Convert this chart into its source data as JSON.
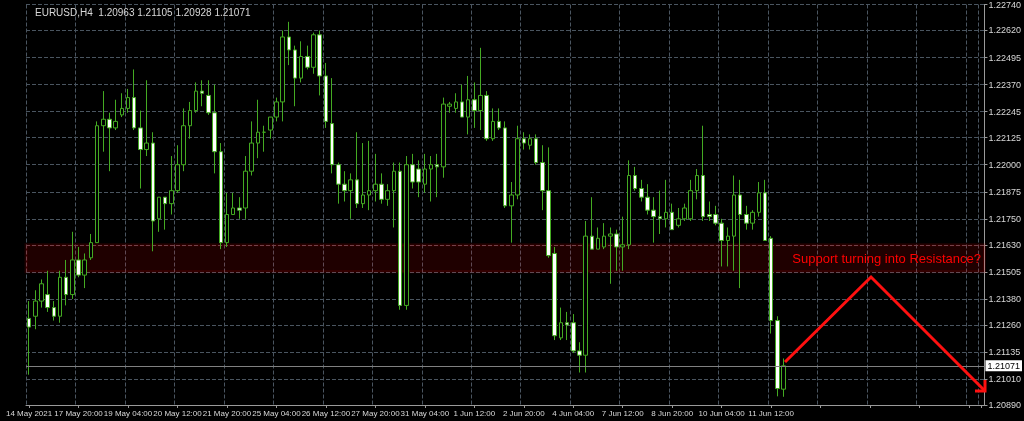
{
  "chart_data": {
    "type": "candlestick",
    "title": "EURUSD,H4  1.20963 1.21105 1.20928 1.21071",
    "categories": [
      "14 May 2021",
      null,
      null,
      null,
      null,
      null,
      null,
      null,
      "17 May 20:00",
      null,
      null,
      null,
      null,
      null,
      null,
      null,
      "19 May 04:00",
      null,
      null,
      null,
      null,
      null,
      null,
      null,
      "20 May 12:00",
      null,
      null,
      null,
      null,
      null,
      null,
      null,
      "21 May 20:00",
      null,
      null,
      null,
      null,
      null,
      null,
      null,
      "25 May 04:00",
      null,
      null,
      null,
      null,
      null,
      null,
      null,
      "26 May 12:00",
      null,
      null,
      null,
      null,
      null,
      null,
      null,
      "27 May 20:00",
      null,
      null,
      null,
      null,
      null,
      null,
      null,
      "31 May 04:00",
      null,
      null,
      null,
      null,
      null,
      null,
      null,
      "1 Jun 12:00",
      null,
      null,
      null,
      null,
      null,
      null,
      null,
      "2 Jun 20:00",
      null,
      null,
      null,
      null,
      null,
      null,
      null,
      "4 Jun 04:00",
      null,
      null,
      null,
      null,
      null,
      null,
      null,
      "7 Jun 12:00",
      null,
      null,
      null,
      null,
      null,
      null,
      null,
      "8 Jun 20:00",
      null,
      null,
      null,
      null,
      null,
      null,
      null,
      "10 Jun 04:00",
      null,
      null,
      null,
      null,
      null,
      null,
      null,
      "11 Jun 12:00",
      null,
      null,
      null,
      null,
      null,
      null,
      null,
      null,
      null,
      null,
      null,
      null,
      null,
      null,
      null,
      null,
      null,
      null,
      null,
      null,
      null,
      null,
      null,
      null,
      null,
      null,
      null,
      null,
      null,
      null,
      null,
      null,
      null,
      null
    ],
    "series": [
      {
        "color": "#44aa22",
        "ohlc": [
          [
            1.2129,
            1.2137,
            1.2103,
            1.2125
          ],
          [
            1.213,
            1.2142,
            1.2124,
            1.2137
          ],
          [
            1.2137,
            1.2147,
            1.2134,
            1.2145
          ],
          [
            1.214,
            1.2151,
            1.2132,
            1.2134
          ],
          [
            1.2134,
            1.2137,
            1.2128,
            1.213
          ],
          [
            1.213,
            1.2151,
            1.2127,
            1.2148
          ],
          [
            1.2148,
            1.2156,
            1.2135,
            1.214
          ],
          [
            1.214,
            1.2169,
            1.2138,
            1.2156
          ],
          [
            1.2156,
            1.2162,
            1.2148,
            1.2149
          ],
          [
            1.2149,
            1.2159,
            1.2143,
            1.2156
          ],
          [
            1.2157,
            1.2168,
            1.2156,
            1.2164
          ],
          [
            1.2164,
            1.222,
            1.2164,
            1.2218
          ],
          [
            1.2218,
            1.2234,
            1.2206,
            1.2221
          ],
          [
            1.2221,
            1.2224,
            1.2197,
            1.2217
          ],
          [
            1.2217,
            1.223,
            1.2216,
            1.222
          ],
          [
            1.2223,
            1.2233,
            1.2222,
            1.2226
          ],
          [
            1.2226,
            1.2235,
            1.2224,
            1.2231
          ],
          [
            1.2231,
            1.2244,
            1.2216,
            1.2217
          ],
          [
            1.2217,
            1.2225,
            1.2189,
            1.2207
          ],
          [
            1.2207,
            1.2239,
            1.2204,
            1.221
          ],
          [
            1.221,
            1.2215,
            1.216,
            1.2174
          ],
          [
            1.2175,
            1.2185,
            1.2169,
            1.2185
          ],
          [
            1.2185,
            1.2185,
            1.217,
            1.2182
          ],
          [
            1.2182,
            1.2204,
            1.2177,
            1.2188
          ],
          [
            1.2188,
            1.2209,
            1.2187,
            1.22
          ],
          [
            1.22,
            1.2226,
            1.2197,
            1.2218
          ],
          [
            1.2218,
            1.2229,
            1.2212,
            1.2225
          ],
          [
            1.2225,
            1.2238,
            1.2224,
            1.2234
          ],
          [
            1.2234,
            1.2239,
            1.2227,
            1.2233
          ],
          [
            1.2232,
            1.2239,
            1.2223,
            1.2224
          ],
          [
            1.2224,
            1.2237,
            1.2196,
            1.2206
          ],
          [
            1.2206,
            1.221,
            1.2161,
            1.2164
          ],
          [
            1.2164,
            1.2187,
            1.2162,
            1.2177
          ],
          [
            1.2177,
            1.2187,
            1.2177,
            1.218
          ],
          [
            1.218,
            1.2185,
            1.2175,
            1.2179
          ],
          [
            1.218,
            1.2204,
            1.2175,
            1.2197
          ],
          [
            1.2197,
            1.222,
            1.2195,
            1.221
          ],
          [
            1.221,
            1.223,
            1.2203,
            1.2215
          ],
          [
            1.2215,
            1.2218,
            1.2206,
            1.2215
          ],
          [
            1.2216,
            1.2222,
            1.2212,
            1.2222
          ],
          [
            1.2222,
            1.2231,
            1.222,
            1.2229
          ],
          [
            1.2229,
            1.2262,
            1.222,
            1.2259
          ],
          [
            1.2259,
            1.2266,
            1.2246,
            1.2253
          ],
          [
            1.2253,
            1.2255,
            1.2227,
            1.224
          ],
          [
            1.224,
            1.2257,
            1.2238,
            1.225
          ],
          [
            1.225,
            1.2255,
            1.2244,
            1.2245
          ],
          [
            1.2245,
            1.2261,
            1.2242,
            1.226
          ],
          [
            1.226,
            1.2262,
            1.2232,
            1.2241
          ],
          [
            1.2241,
            1.2247,
            1.2217,
            1.222
          ],
          [
            1.2219,
            1.224,
            1.2196,
            1.22
          ],
          [
            1.22,
            1.2201,
            1.2182,
            1.2191
          ],
          [
            1.2191,
            1.2197,
            1.2183,
            1.2188
          ],
          [
            1.2188,
            1.2196,
            1.2175,
            1.2193
          ],
          [
            1.2193,
            1.2215,
            1.218,
            1.2182
          ],
          [
            1.2182,
            1.221,
            1.218,
            1.2186
          ],
          [
            1.2186,
            1.2211,
            1.2179,
            1.2188
          ],
          [
            1.2188,
            1.2205,
            1.2183,
            1.2191
          ],
          [
            1.2191,
            1.2196,
            1.2182,
            1.2184
          ],
          [
            1.2184,
            1.2191,
            1.2181,
            1.2188
          ],
          [
            1.2188,
            1.2201,
            1.2171,
            1.2197
          ],
          [
            1.2197,
            1.2201,
            1.2133,
            1.2135
          ],
          [
            1.2135,
            1.2204,
            1.2133,
            1.22
          ],
          [
            1.22,
            1.2205,
            1.2189,
            1.2192
          ],
          [
            1.2198,
            1.2202,
            1.2185,
            1.2192
          ],
          [
            1.2191,
            1.2205,
            1.2187,
            1.2198
          ],
          [
            1.2198,
            1.2204,
            1.2183,
            1.22
          ],
          [
            1.22,
            1.2205,
            1.2185,
            1.2199
          ],
          [
            1.2199,
            1.2231,
            1.2194,
            1.2228
          ],
          [
            1.2227,
            1.2229,
            1.2224,
            1.2228
          ],
          [
            1.2226,
            1.2233,
            1.2224,
            1.2229
          ],
          [
            1.2229,
            1.2237,
            1.2222,
            1.2222
          ],
          [
            1.2222,
            1.2241,
            1.2214,
            1.223
          ],
          [
            1.223,
            1.2238,
            1.2217,
            1.2225
          ],
          [
            1.2225,
            1.2254,
            1.2216,
            1.2232
          ],
          [
            1.2232,
            1.2234,
            1.2211,
            1.2212
          ],
          [
            1.2212,
            1.2226,
            1.2211,
            1.222
          ],
          [
            1.222,
            1.2226,
            1.2216,
            1.2217
          ],
          [
            1.2217,
            1.222,
            1.218,
            1.2181
          ],
          [
            1.2181,
            1.2192,
            1.2164,
            1.2186
          ],
          [
            1.2186,
            1.2218,
            1.2184,
            1.2212
          ],
          [
            1.2212,
            1.2215,
            1.2207,
            1.221
          ],
          [
            1.2209,
            1.2214,
            1.2207,
            1.2212
          ],
          [
            1.2212,
            1.2214,
            1.22,
            1.2201
          ],
          [
            1.2201,
            1.2209,
            1.2179,
            1.2188
          ],
          [
            1.2188,
            1.2208,
            1.2157,
            1.2158
          ],
          [
            1.2159,
            1.2162,
            1.2119,
            1.2121
          ],
          [
            1.212,
            1.2134,
            1.2119,
            1.2127
          ],
          [
            1.2127,
            1.2132,
            1.2119,
            1.2126
          ],
          [
            1.2127,
            1.2131,
            1.2113,
            1.2114
          ],
          [
            1.2114,
            1.2118,
            1.2104,
            1.2112
          ],
          [
            1.2112,
            1.2174,
            1.2104,
            1.2167
          ],
          [
            1.2167,
            1.2185,
            1.2161,
            1.2161
          ],
          [
            1.2161,
            1.2171,
            1.2161,
            1.2166
          ],
          [
            1.2162,
            1.2173,
            1.2161,
            1.2167
          ],
          [
            1.2167,
            1.2171,
            1.2145,
            1.2168
          ],
          [
            1.2168,
            1.217,
            1.2151,
            1.2162
          ],
          [
            1.2162,
            1.2176,
            1.2151,
            1.2163
          ],
          [
            1.2163,
            1.2202,
            1.2161,
            1.2195
          ],
          [
            1.2195,
            1.2199,
            1.2188,
            1.2189
          ],
          [
            1.2189,
            1.2193,
            1.2183,
            1.2185
          ],
          [
            1.2185,
            1.2191,
            1.2177,
            1.2179
          ],
          [
            1.2179,
            1.2185,
            1.2164,
            1.2176
          ],
          [
            1.2176,
            1.2188,
            1.2168,
            1.2175
          ],
          [
            1.2175,
            1.2193,
            1.2171,
            1.2178
          ],
          [
            1.2178,
            1.2182,
            1.217,
            1.217
          ],
          [
            1.2172,
            1.218,
            1.2171,
            1.2175
          ],
          [
            1.2175,
            1.2182,
            1.2174,
            1.218
          ],
          [
            1.2175,
            1.2193,
            1.2174,
            1.2188
          ],
          [
            1.2188,
            1.2198,
            1.2184,
            1.2195
          ],
          [
            1.2195,
            1.2218,
            1.2174,
            1.2176
          ],
          [
            1.2177,
            1.2183,
            1.2174,
            1.2176
          ],
          [
            1.2177,
            1.2181,
            1.2172,
            1.2173
          ],
          [
            1.2173,
            1.2175,
            1.2153,
            1.2165
          ],
          [
            1.2165,
            1.2171,
            1.2153,
            1.2167
          ],
          [
            1.2167,
            1.2195,
            1.2151,
            1.2186
          ],
          [
            1.2186,
            1.2193,
            1.2143,
            1.2177
          ],
          [
            1.2177,
            1.2181,
            1.217,
            1.2173
          ],
          [
            1.2173,
            1.2179,
            1.217,
            1.2178
          ],
          [
            1.2178,
            1.2192,
            1.2176,
            1.2187
          ],
          [
            1.2187,
            1.2193,
            1.2165,
            1.2165
          ],
          [
            1.2166,
            1.2167,
            1.2122,
            1.2128
          ],
          [
            1.2128,
            1.213,
            1.2093,
            1.20966
          ],
          [
            1.20963,
            1.21105,
            1.20928,
            1.21071
          ],
          null,
          null,
          null,
          null,
          null,
          null,
          null,
          null,
          null,
          null,
          null,
          null,
          null,
          null,
          null,
          null,
          null,
          null,
          null,
          null,
          null,
          null,
          null,
          null,
          null,
          null,
          null,
          null,
          null,
          null,
          null,
          null
        ]
      }
    ],
    "ylim": [
      1.2089,
      1.2274
    ],
    "yticks": [
      {
        "value": 1.2089,
        "label": "1.20890"
      },
      {
        "value": 1.2101,
        "label": "1.21010"
      },
      {
        "value": 1.21135,
        "label": "1.21135"
      },
      {
        "value": 1.2126,
        "label": "1.21260"
      },
      {
        "value": 1.2138,
        "label": "1.21380"
      },
      {
        "value": 1.21505,
        "label": "1.21505"
      },
      {
        "value": 1.2163,
        "label": "1.21630"
      },
      {
        "value": 1.2175,
        "label": "1.21750"
      },
      {
        "value": 1.21875,
        "label": "1.21875"
      },
      {
        "value": 1.22,
        "label": "1.22000"
      },
      {
        "value": 1.22125,
        "label": "1.22125"
      },
      {
        "value": 1.22245,
        "label": "1.22245"
      },
      {
        "value": 1.2237,
        "label": "1.22370"
      },
      {
        "value": 1.22495,
        "label": "1.22495"
      },
      {
        "value": 1.2262,
        "label": "1.22620"
      },
      {
        "value": 1.2274,
        "label": "1.22740"
      }
    ],
    "grid": true,
    "ref_lines": [
      {
        "axis": "y",
        "value": 1.21071,
        "label": "1.21071",
        "color": "#808080"
      }
    ],
    "bands": [
      {
        "axis": "y",
        "from": 1.21505,
        "to": 1.2163,
        "label": "Support turning into Resistance?",
        "color": "#ff0000"
      }
    ]
  }
}
